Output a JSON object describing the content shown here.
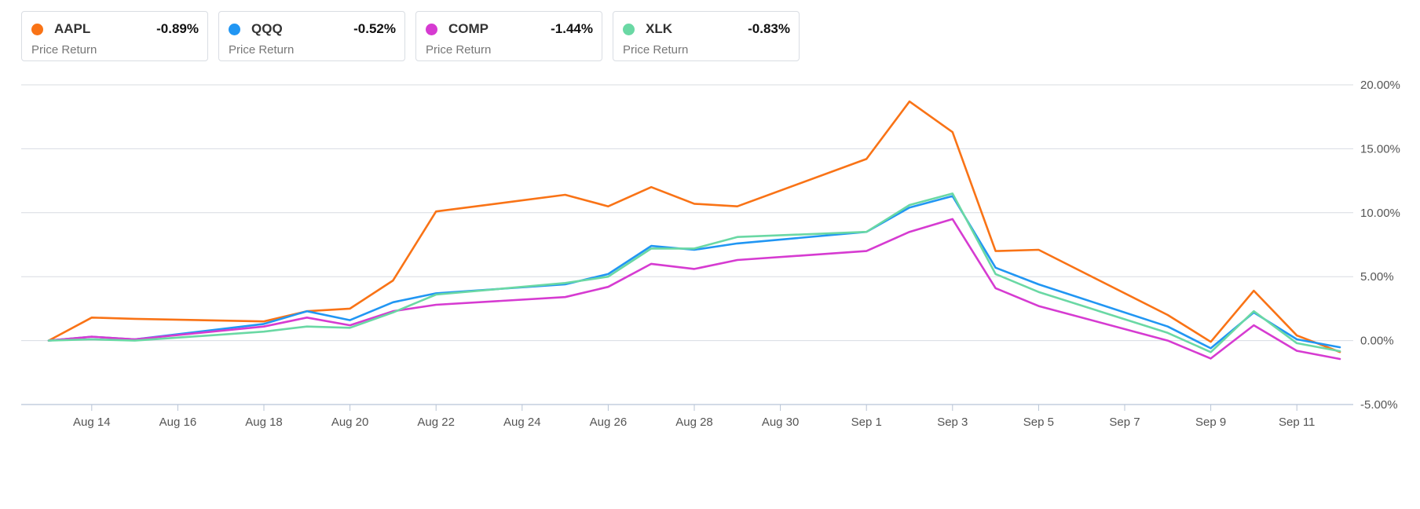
{
  "legend": [
    {
      "symbol": "AAPL",
      "value": "-0.89%",
      "subtitle": "Price Return",
      "color": "#f97316"
    },
    {
      "symbol": "QQQ",
      "value": "-0.52%",
      "subtitle": "Price Return",
      "color": "#2196f3"
    },
    {
      "symbol": "COMP",
      "value": "-1.44%",
      "subtitle": "Price Return",
      "color": "#d63bd1"
    },
    {
      "symbol": "XLK",
      "value": "-0.83%",
      "subtitle": "Price Return",
      "color": "#6ad8a4"
    }
  ],
  "chart_data": {
    "type": "line",
    "title": "",
    "xlabel": "",
    "ylabel": "",
    "ylim": [
      -5,
      20
    ],
    "y_ticks": [
      "20.00%",
      "15.00%",
      "10.00%",
      "5.00%",
      "0.00%",
      "-5.00%"
    ],
    "x_ticks": [
      "Aug 14",
      "Aug 16",
      "Aug 18",
      "Aug 20",
      "Aug 22",
      "Aug 24",
      "Aug 26",
      "Aug 28",
      "Aug 30",
      "Sep 1",
      "Sep 3",
      "Sep 5",
      "Sep 7",
      "Sep 9",
      "Sep 11"
    ],
    "grid": true,
    "x": [
      "Aug 13",
      "Aug 14",
      "Aug 15",
      "Aug 18",
      "Aug 19",
      "Aug 20",
      "Aug 21",
      "Aug 22",
      "Aug 25",
      "Aug 26",
      "Aug 27",
      "Aug 28",
      "Aug 29",
      "Sep 1",
      "Sep 2",
      "Sep 3",
      "Sep 4",
      "Sep 5",
      "Sep 8",
      "Sep 9",
      "Sep 10",
      "Sep 11",
      "Sep 12"
    ],
    "series": [
      {
        "name": "AAPL",
        "color": "#f97316",
        "values": [
          0.0,
          1.8,
          1.7,
          1.5,
          2.3,
          2.5,
          4.7,
          10.1,
          11.4,
          10.5,
          12.0,
          10.7,
          10.5,
          14.2,
          18.7,
          16.3,
          7.0,
          7.1,
          2.0,
          -0.1,
          3.9,
          0.4,
          -0.89
        ]
      },
      {
        "name": "QQQ",
        "color": "#2196f3",
        "values": [
          0.0,
          0.3,
          0.1,
          1.3,
          2.3,
          1.6,
          3.0,
          3.7,
          4.4,
          5.2,
          7.4,
          7.1,
          7.6,
          8.5,
          10.4,
          11.3,
          5.7,
          4.4,
          1.1,
          -0.6,
          2.2,
          0.1,
          -0.52
        ]
      },
      {
        "name": "COMP",
        "color": "#d63bd1",
        "values": [
          0.0,
          0.3,
          0.1,
          1.1,
          1.8,
          1.2,
          2.3,
          2.8,
          3.4,
          4.2,
          6.0,
          5.6,
          6.3,
          7.0,
          8.5,
          9.5,
          4.1,
          2.7,
          0.0,
          -1.4,
          1.2,
          -0.8,
          -1.44
        ]
      },
      {
        "name": "XLK",
        "color": "#6ad8a4",
        "values": [
          0.0,
          0.1,
          0.0,
          0.7,
          1.1,
          1.0,
          2.2,
          3.6,
          4.5,
          5.0,
          7.2,
          7.2,
          8.1,
          8.5,
          10.6,
          11.5,
          5.2,
          3.8,
          0.6,
          -0.9,
          2.3,
          -0.2,
          -0.83
        ]
      }
    ]
  }
}
